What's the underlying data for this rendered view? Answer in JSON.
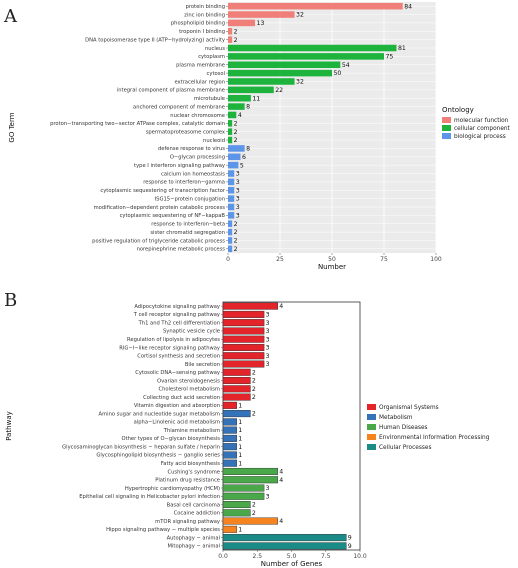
{
  "chart_data": [
    {
      "panel": "A",
      "type": "bar",
      "orientation": "horizontal",
      "xlabel": "Number",
      "ylabel": "GO Term",
      "xlim": [
        0,
        100
      ],
      "xticks": [
        "0",
        "25",
        "50",
        "75",
        "100"
      ],
      "grid": true,
      "legend": {
        "title": "Ontology",
        "placement": "right",
        "entries": [
          {
            "name": "molecular function",
            "color": "#f07f79"
          },
          {
            "name": "cellular component",
            "color": "#1db33c"
          },
          {
            "name": "biological process",
            "color": "#5d95e8"
          }
        ]
      },
      "categories": [
        "protein binding",
        "zinc ion binding",
        "phospholipid binding",
        "troponin I binding",
        "DNA topoisomerase type II (ATP−hydrolyzing) activity",
        "nucleus",
        "cytoplasm",
        "plasma membrane",
        "cytosol",
        "extracellular region",
        "integral component of plasma membrane",
        "microtubule",
        "anchored component of membrane",
        "nuclear chromosome",
        "proton−transporting two−sector ATPase complex, catalytic domain",
        "spermatoproteasome complex",
        "nucleoid",
        "defense response to virus",
        "O−glycan processing",
        "type I interferon signaling pathway",
        "calcium ion homeostasis",
        "response to interferon−gamma",
        "cytoplasmic sequestering of transcription factor",
        "ISG15−protein conjugation",
        "modification−dependent protein catabolic process",
        "cytoplasmic sequestering of NF−kappaB",
        "response to interferon−beta",
        "sister chromatid segregation",
        "positive regulation of triglyceride catabolic process",
        "norepinephrine metabolic process"
      ],
      "values": [
        84,
        32,
        13,
        2,
        2,
        81,
        75,
        54,
        50,
        32,
        22,
        11,
        8,
        4,
        2,
        2,
        2,
        8,
        6,
        5,
        3,
        3,
        3,
        3,
        3,
        3,
        2,
        2,
        2,
        2
      ],
      "groups": [
        "molecular function",
        "molecular function",
        "molecular function",
        "molecular function",
        "molecular function",
        "cellular component",
        "cellular component",
        "cellular component",
        "cellular component",
        "cellular component",
        "cellular component",
        "cellular component",
        "cellular component",
        "cellular component",
        "cellular component",
        "cellular component",
        "cellular component",
        "biological process",
        "biological process",
        "biological process",
        "biological process",
        "biological process",
        "biological process",
        "biological process",
        "biological process",
        "biological process",
        "biological process",
        "biological process",
        "biological process",
        "biological process"
      ]
    },
    {
      "panel": "B",
      "type": "bar",
      "orientation": "horizontal",
      "xlabel": "Number of Genes",
      "ylabel": "Pathway",
      "xlim": [
        0,
        10
      ],
      "xticks": [
        "0.0",
        "2.5",
        "5.0",
        "7.5",
        "10.0"
      ],
      "grid": false,
      "legend": {
        "title": "",
        "placement": "right",
        "entries": [
          {
            "name": "Organismal Systems",
            "color": "#e3242b"
          },
          {
            "name": "Metabolism",
            "color": "#3573b8"
          },
          {
            "name": "Human Diseases",
            "color": "#4aa84b"
          },
          {
            "name": "Environmental Information Processing",
            "color": "#f48320"
          },
          {
            "name": "Cellular Processes",
            "color": "#1b8b87"
          }
        ]
      },
      "categories": [
        "Adipocytokine signaling pathway",
        "T cell receptor signaling pathway",
        "Th1 and Th2 cell differentiation",
        "Synaptic vesicle cycle",
        "Regulation of lipolysis in adipocytes",
        "RIG−I−like receptor signaling pathway",
        "Cortisol synthesis and secretion",
        "Bile secretion",
        "Cytosolic DNA−sensing pathway",
        "Ovarian steroidogenesis",
        "Cholesterol metabolism",
        "Collecting duct acid secretion",
        "Vitamin digestion and absorption",
        "Amino sugar and nucleotide sugar metabolism",
        "alpha−Linolenic acid metabolism",
        "Thiamine metabolism",
        "Other types of O−glycan biosynthesis",
        "Glycosaminoglycan biosynthesis − heparan sulfate / heparin",
        "Glycosphingolipid biosynthesis − ganglio series",
        "Fatty acid biosynthesis",
        "Cushing's syndrome",
        "Platinum drug resistance",
        "Hypertrophic cardiomyopathy (HCM)",
        "Epithelial cell signaling in Helicobacter pylori infection",
        "Basal cell carcinoma",
        "Cocaine addiction",
        "mTOR signaling pathway",
        "Hippo signaling pathway − multiple species",
        "Autophagy − animal",
        "Mitophagy − animal"
      ],
      "values": [
        4,
        3,
        3,
        3,
        3,
        3,
        3,
        3,
        2,
        2,
        2,
        2,
        1,
        2,
        1,
        1,
        1,
        1,
        1,
        1,
        4,
        4,
        3,
        3,
        2,
        2,
        4,
        1,
        9,
        9
      ],
      "groups": [
        "Organismal Systems",
        "Organismal Systems",
        "Organismal Systems",
        "Organismal Systems",
        "Organismal Systems",
        "Organismal Systems",
        "Organismal Systems",
        "Organismal Systems",
        "Organismal Systems",
        "Organismal Systems",
        "Organismal Systems",
        "Organismal Systems",
        "Organismal Systems",
        "Metabolism",
        "Metabolism",
        "Metabolism",
        "Metabolism",
        "Metabolism",
        "Metabolism",
        "Metabolism",
        "Human Diseases",
        "Human Diseases",
        "Human Diseases",
        "Human Diseases",
        "Human Diseases",
        "Human Diseases",
        "Environmental Information Processing",
        "Environmental Information Processing",
        "Cellular Processes",
        "Cellular Processes"
      ]
    }
  ]
}
